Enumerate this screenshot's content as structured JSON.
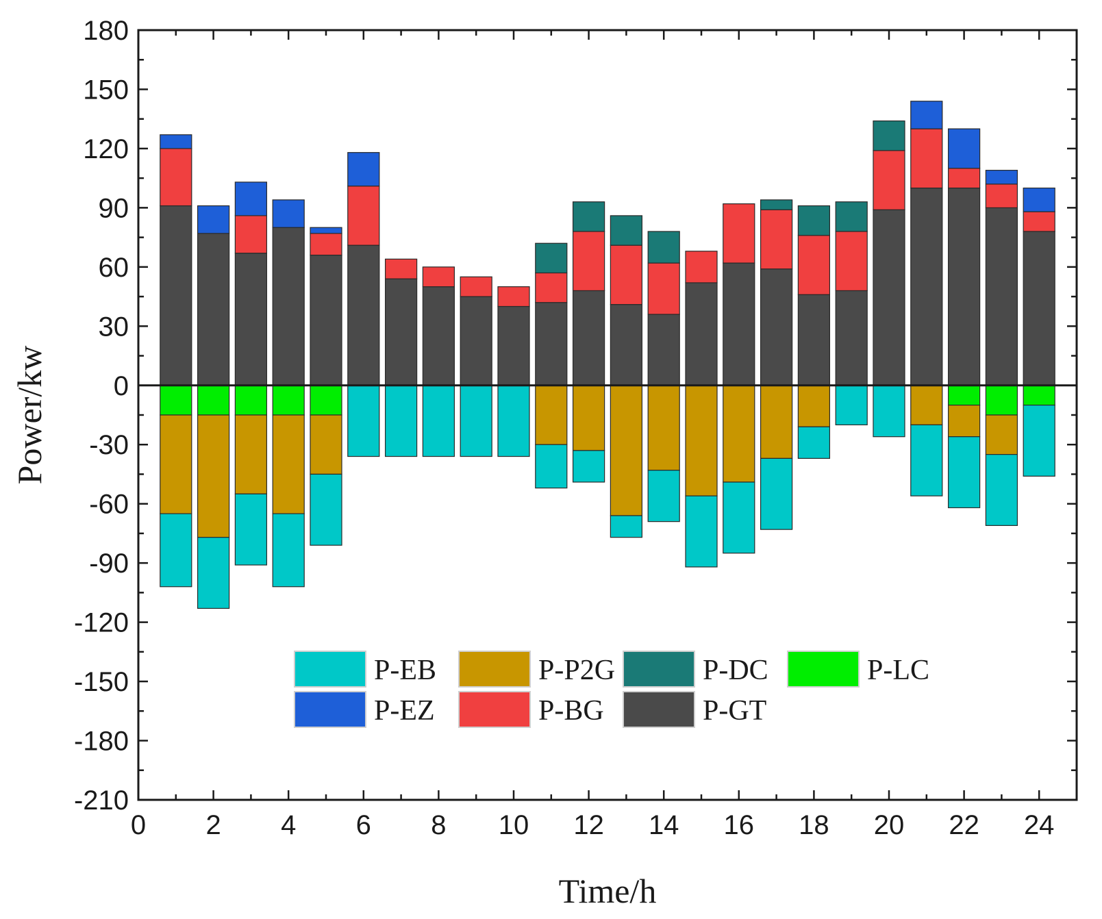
{
  "chart_data": {
    "type": "bar",
    "stacked": true,
    "title": "",
    "xlabel": "Time/h",
    "ylabel": "Power/kw",
    "xlim": [
      0,
      25
    ],
    "ylim": [
      -210,
      180
    ],
    "x_ticks": [
      0,
      2,
      4,
      6,
      8,
      10,
      12,
      14,
      16,
      18,
      20,
      22,
      24
    ],
    "y_ticks": [
      180,
      150,
      120,
      90,
      60,
      30,
      0,
      -30,
      -60,
      -90,
      -120,
      -150,
      -180,
      -210
    ],
    "legend_position": "lower-center",
    "legend_order": [
      "P-EB",
      "P-P2G",
      "P-DC",
      "P-LC",
      "P-EZ",
      "P-BG",
      "P-GT"
    ],
    "x": [
      1,
      2,
      3,
      4,
      5,
      6,
      7,
      8,
      9,
      10,
      11,
      12,
      13,
      14,
      15,
      16,
      17,
      18,
      19,
      20,
      21,
      22,
      23,
      24
    ],
    "positive_stack_order": [
      "P-GT",
      "P-BG",
      "P-DC",
      "P-EZ"
    ],
    "negative_stack_order": [
      "P-LC",
      "P-P2G",
      "P-EB"
    ],
    "series": [
      {
        "name": "P-GT",
        "color": "#4a4a4a",
        "values": [
          91,
          77,
          67,
          80,
          66,
          71,
          54,
          50,
          45,
          40,
          42,
          48,
          41,
          36,
          52,
          62,
          59,
          46,
          48,
          89,
          100,
          100,
          90,
          78
        ]
      },
      {
        "name": "P-BG",
        "color": "#f04040",
        "values": [
          29,
          0,
          19,
          0,
          11,
          30,
          10,
          10,
          10,
          10,
          15,
          30,
          30,
          26,
          16,
          30,
          30,
          30,
          30,
          30,
          30,
          10,
          12,
          10
        ]
      },
      {
        "name": "P-DC",
        "color": "#1a7a76",
        "values": [
          0,
          0,
          0,
          0,
          0,
          0,
          0,
          0,
          0,
          0,
          15,
          15,
          15,
          16,
          0,
          0,
          5,
          15,
          15,
          15,
          0,
          0,
          0,
          0
        ]
      },
      {
        "name": "P-EZ",
        "color": "#1e5fd8",
        "values": [
          7,
          14,
          17,
          14,
          3,
          17,
          0,
          0,
          0,
          0,
          0,
          0,
          0,
          0,
          0,
          0,
          0,
          0,
          0,
          0,
          14,
          20,
          7,
          12
        ]
      },
      {
        "name": "P-LC",
        "color": "#00ee00",
        "values": [
          -15,
          -15,
          -15,
          -15,
          -15,
          0,
          0,
          0,
          0,
          0,
          0,
          0,
          0,
          0,
          0,
          0,
          0,
          0,
          0,
          0,
          0,
          -10,
          -15,
          -10
        ]
      },
      {
        "name": "P-P2G",
        "color": "#c89600",
        "values": [
          -50,
          -62,
          -40,
          -50,
          -30,
          0,
          0,
          0,
          0,
          0,
          -30,
          -33,
          -66,
          -43,
          -56,
          -49,
          -37,
          -21,
          0,
          0,
          -20,
          -16,
          -20,
          0
        ]
      },
      {
        "name": "P-EB",
        "color": "#00c8c8",
        "values": [
          -37,
          -36,
          -36,
          -37,
          -36,
          -36,
          -36,
          -36,
          -36,
          -36,
          -22,
          -16,
          -11,
          -26,
          -36,
          -36,
          -36,
          -16,
          -20,
          -26,
          -36,
          -36,
          -36,
          -36
        ]
      }
    ]
  }
}
